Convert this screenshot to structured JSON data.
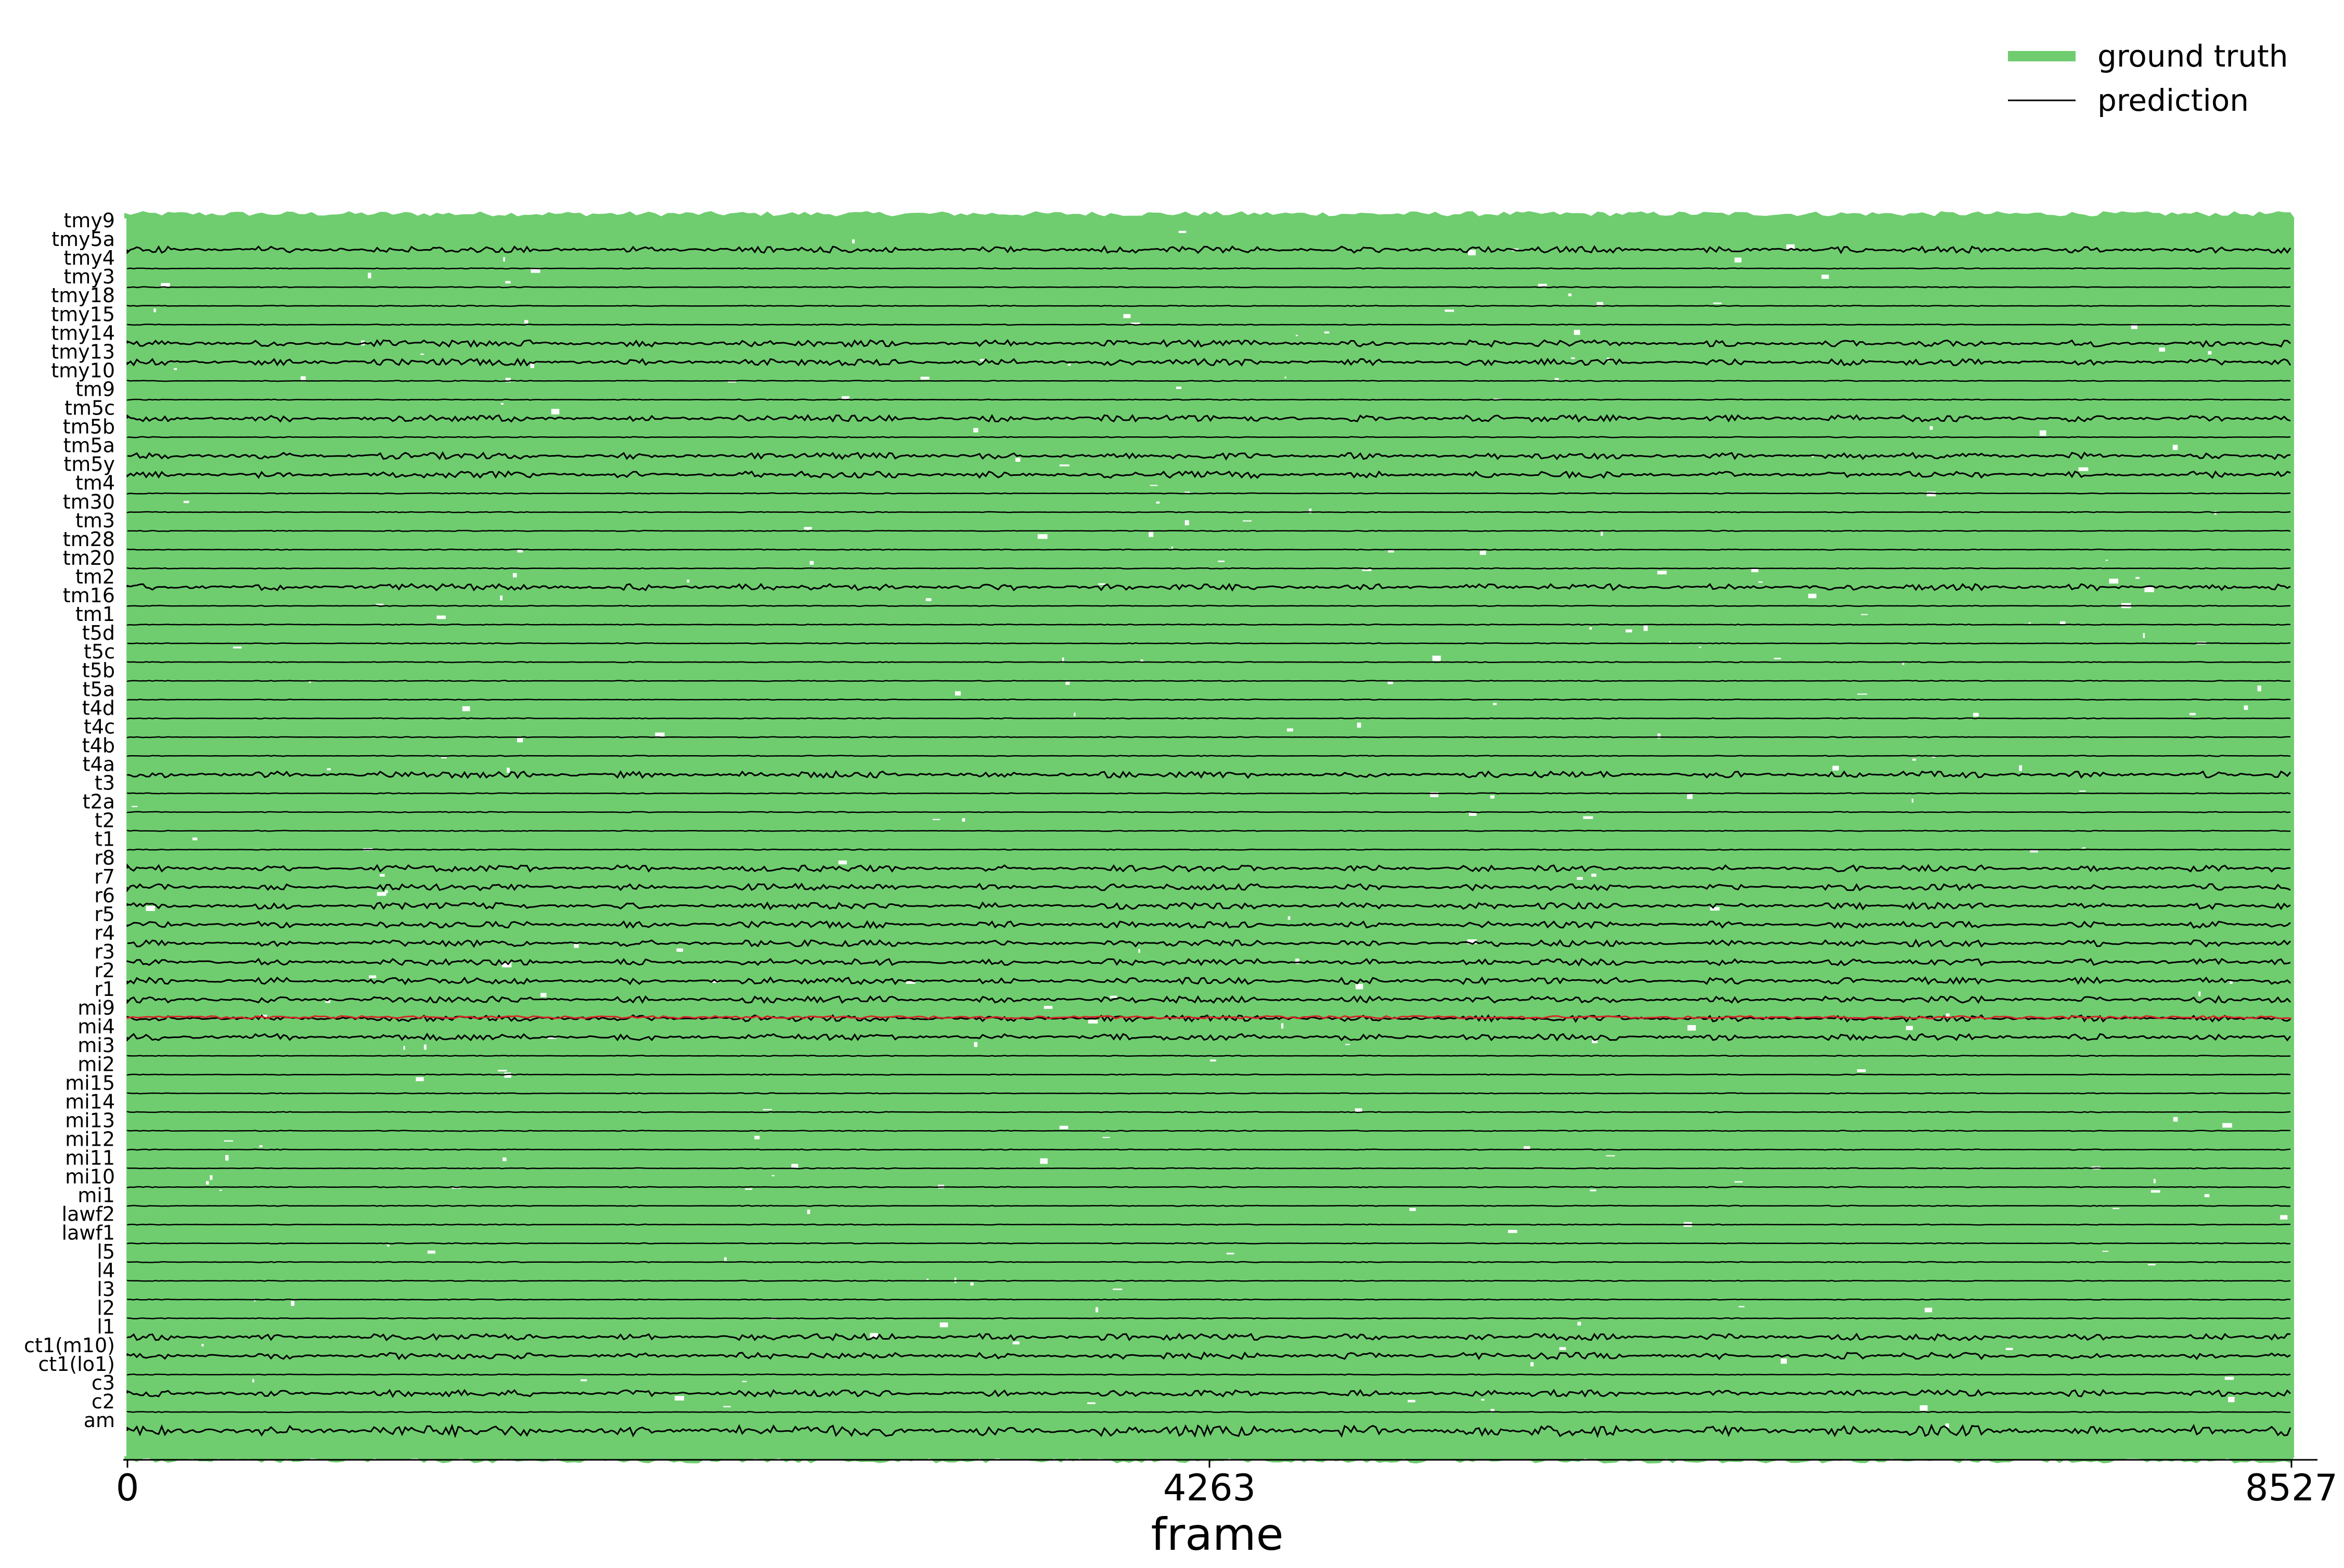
{
  "chart_data": {
    "type": "line",
    "title": "",
    "xlabel": "frame",
    "ylabel": "",
    "xlim": [
      0,
      8527
    ],
    "x_ticks": [
      0,
      4263,
      8527
    ],
    "x_tick_labels": [
      "0",
      "4263",
      "8527"
    ],
    "grid": false,
    "legend_position": "top-right",
    "legend": [
      {
        "label": "ground truth",
        "color": "#6fcd6f"
      },
      {
        "label": "prediction",
        "color": "#000000"
      }
    ],
    "highlight_color": "#d62728",
    "highlighted_row": "mi9",
    "series_rows": [
      "tmy9",
      "tmy5a",
      "tmy4",
      "tmy3",
      "tmy18",
      "tmy15",
      "tmy14",
      "tmy13",
      "tmy10",
      "tm9",
      "tm5c",
      "tm5b",
      "tm5a",
      "tm5y",
      "tm4",
      "tm30",
      "tm3",
      "tm28",
      "tm20",
      "tm2",
      "tm16",
      "tm1",
      "t5d",
      "t5c",
      "t5b",
      "t5a",
      "t4d",
      "t4c",
      "t4b",
      "t4a",
      "t3",
      "t2a",
      "t2",
      "t1",
      "r8",
      "r7",
      "r6",
      "r5",
      "r4",
      "r3",
      "r2",
      "r1",
      "mi9",
      "mi4",
      "mi3",
      "mi2",
      "mi15",
      "mi14",
      "mi13",
      "mi12",
      "mi11",
      "mi10",
      "mi1",
      "lawf2",
      "lawf1",
      "l5",
      "l4",
      "l3",
      "l2",
      "l1",
      "ct1(m10)",
      "ct1(lo1)",
      "c3",
      "c2",
      "am"
    ],
    "active_rows": [
      "am",
      "l1",
      "r1",
      "r2",
      "r3",
      "r4",
      "r5",
      "r6",
      "r7",
      "r8",
      "mi9",
      "mi4",
      "t4a",
      "tm5a",
      "tm5y",
      "tm5c",
      "tm2",
      "tmy5a",
      "tmy14",
      "tmy13",
      "c3",
      "ct1(m10)"
    ]
  },
  "legend_labels": {
    "ground_truth": "ground truth",
    "prediction": "prediction"
  },
  "axis": {
    "xlabel": "frame",
    "tick_0": "0",
    "tick_mid": "4263",
    "tick_max": "8527"
  }
}
